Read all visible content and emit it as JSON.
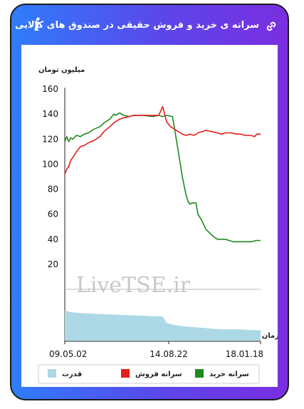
{
  "header": {
    "title": "سرانه ی خرید و فروش حقیقی در صندوق های کالایی",
    "info_icon": "info-icon",
    "link_icon": "link-icon"
  },
  "colors": {
    "buy": "#1e8a1e",
    "sell": "#e81b1b",
    "power": "#add8e6",
    "gradient_start": "#2f7dfb",
    "gradient_end": "#7a2ee0"
  },
  "chart_data": {
    "type": "line",
    "title": "",
    "ylabel": "میلیون تومان",
    "xlabel": "زمان",
    "watermark": "LiveTSE.ir",
    "ylim": [
      0,
      160
    ],
    "yticks": [
      "20",
      "40",
      "60",
      "80",
      "100",
      "120",
      "140",
      "160"
    ],
    "xticks": [
      "09.05.02",
      "14.08.22",
      "18.01.18"
    ],
    "grid": false,
    "legend_position": "bottom",
    "series": [
      {
        "name": "سرانه خرید",
        "color": "#1e8a1e",
        "x": [
          0,
          1,
          2,
          3,
          4,
          6,
          8,
          10,
          12,
          15,
          18,
          20,
          23,
          25,
          26,
          28,
          30,
          33,
          35,
          40,
          45,
          48,
          50,
          52,
          55,
          58,
          60,
          62,
          63,
          64,
          65,
          66,
          67,
          68,
          70,
          72,
          74,
          76,
          78,
          80,
          82,
          84,
          86,
          88,
          90,
          92,
          95,
          98,
          100
        ],
        "values": [
          118,
          122,
          118,
          121,
          120,
          123,
          122,
          124,
          125,
          128,
          130,
          133,
          136,
          140,
          139,
          141,
          139,
          138,
          139,
          139,
          138,
          139,
          138,
          139,
          138,
          110,
          90,
          75,
          70,
          68,
          69,
          69,
          69,
          60,
          55,
          48,
          45,
          42,
          40,
          40,
          40,
          39,
          38,
          38,
          38,
          38,
          38,
          39,
          39
        ]
      },
      {
        "name": "سرانه فروش",
        "color": "#e81b1b",
        "x": [
          0,
          1,
          2,
          3,
          4,
          6,
          8,
          10,
          12,
          15,
          18,
          20,
          23,
          25,
          28,
          30,
          33,
          35,
          40,
          45,
          48,
          50,
          52,
          54,
          56,
          58,
          60,
          62,
          64,
          66,
          68,
          70,
          72,
          75,
          78,
          80,
          82,
          85,
          88,
          90,
          92,
          95,
          97,
          98,
          100
        ],
        "values": [
          92,
          96,
          98,
          103,
          105,
          110,
          114,
          115,
          117,
          119,
          122,
          126,
          130,
          133,
          136,
          137,
          138,
          139,
          139,
          139,
          139,
          146,
          134,
          130,
          128,
          126,
          124,
          123,
          124,
          123,
          125,
          126,
          127,
          126,
          125,
          124,
          125,
          125,
          124,
          124,
          123,
          123,
          122,
          124,
          124
        ]
      },
      {
        "name": "قدرت",
        "color": "#add8e6",
        "x": [
          0,
          2,
          5,
          10,
          20,
          30,
          40,
          50,
          52,
          55,
          60,
          65,
          70,
          75,
          80,
          85,
          90,
          95,
          100
        ],
        "values": [
          38,
          36,
          35,
          34,
          33,
          32,
          31,
          30,
          22,
          20,
          18,
          17,
          16,
          15,
          14,
          14,
          14,
          13,
          13
        ]
      }
    ]
  }
}
